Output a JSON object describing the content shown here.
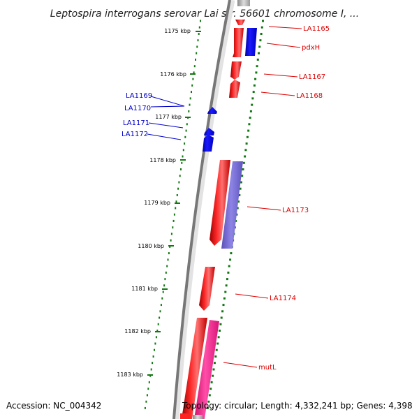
{
  "title": "Leptospira interrogans serovar Lai str. 56601 chromosome I, ...",
  "accession": "Accession: NC_004342",
  "topology": "Topology: circular; Length: 4,332,241 bp; Genes: 4,398",
  "colors": {
    "forward_gene": "#ff0000",
    "reverse_gene": "#0000ff",
    "cds_purple": "#7b6fd6",
    "cds_pink": "#ff3399",
    "backbone": "#777777",
    "tick": "#117711",
    "label_red": "#dd0000",
    "label_blue": "#0000cc"
  },
  "ticks": [
    {
      "label": "1175 kbp"
    },
    {
      "label": "1176 kbp"
    },
    {
      "label": "1177 kbp"
    },
    {
      "label": "1178 kbp"
    },
    {
      "label": "1179 kbp"
    },
    {
      "label": "1180 kbp"
    },
    {
      "label": "1181 kbp"
    },
    {
      "label": "1182 kbp"
    },
    {
      "label": "1183 kbp"
    }
  ],
  "right_labels": [
    {
      "text": "LA1165"
    },
    {
      "text": "pdxH"
    },
    {
      "text": "LA1167"
    },
    {
      "text": "LA1168"
    },
    {
      "text": "LA1173"
    },
    {
      "text": "LA1174"
    },
    {
      "text": "mutL"
    }
  ],
  "left_labels": [
    {
      "text": "LA1169"
    },
    {
      "text": "LA1170"
    },
    {
      "text": "LA1171"
    },
    {
      "text": "LA1172"
    }
  ]
}
